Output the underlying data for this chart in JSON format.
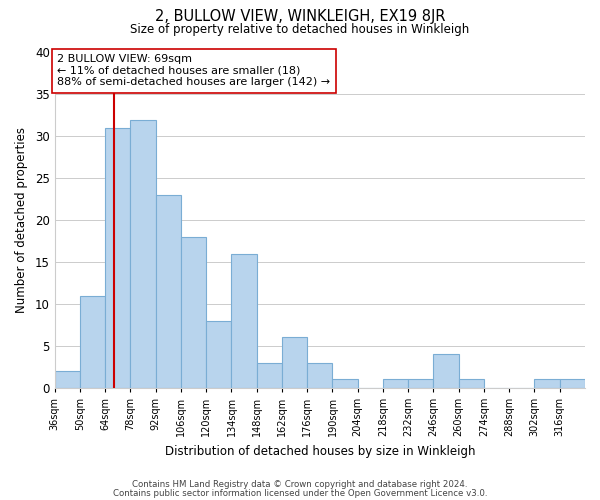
{
  "title": "2, BULLOW VIEW, WINKLEIGH, EX19 8JR",
  "subtitle": "Size of property relative to detached houses in Winkleigh",
  "xlabel": "Distribution of detached houses by size in Winkleigh",
  "ylabel": "Number of detached properties",
  "bins": [
    36,
    50,
    64,
    78,
    92,
    106,
    120,
    134,
    148,
    162,
    176,
    190,
    204,
    218,
    232,
    246,
    260,
    274,
    288,
    302,
    316,
    330
  ],
  "counts": [
    2,
    11,
    31,
    32,
    23,
    18,
    8,
    16,
    3,
    6,
    3,
    1,
    0,
    1,
    1,
    4,
    1,
    0,
    0,
    1,
    1
  ],
  "bar_color": "#b8d4ed",
  "bar_edge_color": "#7aadd4",
  "vline_x": 69,
  "vline_color": "#cc0000",
  "ylim": [
    0,
    40
  ],
  "annotation_title": "2 BULLOW VIEW: 69sqm",
  "annotation_line2": "← 11% of detached houses are smaller (18)",
  "annotation_line3": "88% of semi-detached houses are larger (142) →",
  "annotation_box_color": "#ffffff",
  "annotation_box_edge": "#cc0000",
  "footer_line1": "Contains HM Land Registry data © Crown copyright and database right 2024.",
  "footer_line2": "Contains public sector information licensed under the Open Government Licence v3.0.",
  "tick_labels": [
    "36sqm",
    "50sqm",
    "64sqm",
    "78sqm",
    "92sqm",
    "106sqm",
    "120sqm",
    "134sqm",
    "148sqm",
    "162sqm",
    "176sqm",
    "190sqm",
    "204sqm",
    "218sqm",
    "232sqm",
    "246sqm",
    "260sqm",
    "274sqm",
    "288sqm",
    "302sqm",
    "316sqm"
  ],
  "yticks": [
    0,
    5,
    10,
    15,
    20,
    25,
    30,
    35,
    40
  ],
  "background_color": "#ffffff",
  "grid_color": "#cccccc"
}
